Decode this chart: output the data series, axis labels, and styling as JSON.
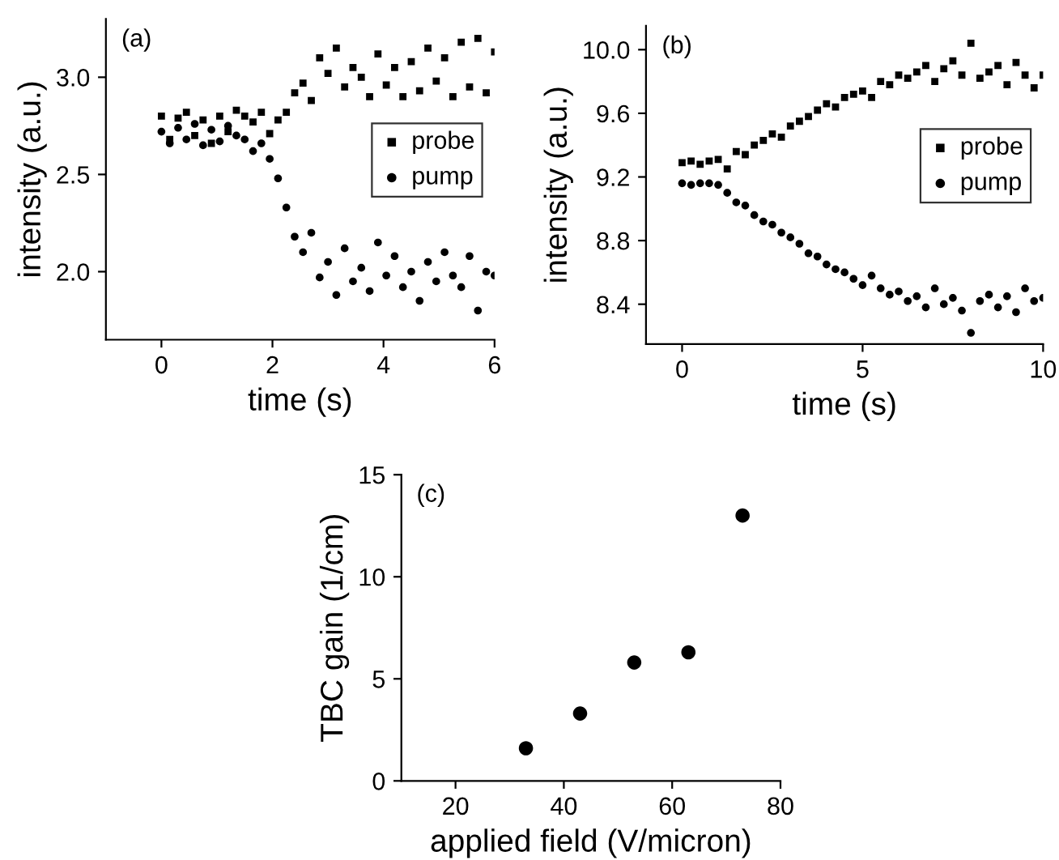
{
  "chart_data": [
    {
      "type": "scatter",
      "xlabel": "time (s)",
      "ylabel": "intensity (a.u.)",
      "annotations": [
        "(a)"
      ],
      "xlim": [
        -1,
        6
      ],
      "ylim": [
        1.65,
        3.3
      ],
      "xticks": [
        0,
        2,
        4,
        6
      ],
      "yticks": [
        {
          "value": 2.0,
          "label": "2.0"
        },
        {
          "value": 2.5,
          "label": "2.5"
        },
        {
          "value": 3.0,
          "label": "3.0"
        }
      ],
      "legend": "right",
      "grid": false,
      "x": [
        0,
        0.15,
        0.3,
        0.45,
        0.6,
        0.75,
        0.9,
        1.05,
        1.2,
        1.35,
        1.5,
        1.65,
        1.8,
        1.95,
        2.1,
        2.25,
        2.4,
        2.55,
        2.7,
        2.85,
        3.0,
        3.15,
        3.3,
        3.45,
        3.6,
        3.75,
        3.9,
        4.05,
        4.2,
        4.35,
        4.5,
        4.65,
        4.8,
        4.95,
        5.1,
        5.25,
        5.4,
        5.55,
        5.7,
        5.85,
        6.0
      ],
      "series": [
        {
          "name": "probe",
          "color": "#000000",
          "marker": "square",
          "values": [
            2.8,
            2.68,
            2.79,
            2.82,
            2.7,
            2.78,
            2.66,
            2.8,
            2.72,
            2.83,
            2.8,
            2.77,
            2.82,
            2.71,
            2.78,
            2.82,
            2.92,
            2.97,
            2.88,
            3.1,
            3.02,
            3.15,
            2.95,
            3.05,
            3.0,
            2.9,
            3.12,
            2.96,
            3.05,
            2.9,
            3.08,
            2.93,
            3.15,
            2.98,
            3.1,
            2.9,
            3.18,
            2.95,
            3.2,
            2.92,
            3.13
          ]
        },
        {
          "name": "pump",
          "color": "#000000",
          "marker": "circle",
          "values": [
            2.72,
            2.66,
            2.74,
            2.68,
            2.76,
            2.65,
            2.73,
            2.67,
            2.75,
            2.7,
            2.68,
            2.62,
            2.66,
            2.58,
            2.48,
            2.33,
            2.18,
            2.1,
            2.2,
            1.97,
            2.05,
            1.88,
            2.12,
            1.95,
            2.02,
            1.9,
            2.15,
            1.98,
            2.08,
            1.92,
            2.0,
            1.85,
            2.05,
            1.95,
            2.1,
            1.98,
            1.92,
            2.08,
            1.8,
            2.0,
            1.98
          ]
        }
      ]
    },
    {
      "type": "scatter",
      "xlabel": "time (s)",
      "ylabel": "intensity (a.u.)",
      "annotations": [
        "(b)"
      ],
      "xlim": [
        -1,
        10
      ],
      "ylim": [
        8.15,
        10.15
      ],
      "xticks": [
        0,
        5,
        10
      ],
      "yticks": [
        {
          "value": 8.4,
          "label": "8.4"
        },
        {
          "value": 8.8,
          "label": "8.8"
        },
        {
          "value": 9.2,
          "label": "9.2"
        },
        {
          "value": 9.6,
          "label": "9.6"
        },
        {
          "value": 10.0,
          "label": "10.0"
        }
      ],
      "legend": "right",
      "grid": false,
      "x": [
        0,
        0.25,
        0.5,
        0.75,
        1,
        1.25,
        1.5,
        1.75,
        2,
        2.25,
        2.5,
        2.75,
        3,
        3.25,
        3.5,
        3.75,
        4,
        4.25,
        4.5,
        4.75,
        5,
        5.25,
        5.5,
        5.75,
        6,
        6.25,
        6.5,
        6.75,
        7,
        7.25,
        7.5,
        7.75,
        8,
        8.25,
        8.5,
        8.75,
        9,
        9.25,
        9.5,
        9.75,
        10
      ],
      "series": [
        {
          "name": "probe",
          "color": "#000000",
          "marker": "square",
          "values": [
            9.29,
            9.3,
            9.28,
            9.3,
            9.31,
            9.25,
            9.36,
            9.34,
            9.4,
            9.43,
            9.47,
            9.45,
            9.52,
            9.55,
            9.58,
            9.62,
            9.66,
            9.64,
            9.7,
            9.72,
            9.74,
            9.7,
            9.8,
            9.78,
            9.84,
            9.82,
            9.86,
            9.9,
            9.8,
            9.88,
            9.93,
            9.84,
            10.04,
            9.82,
            9.86,
            9.9,
            9.78,
            9.92,
            9.84,
            9.76,
            9.84
          ]
        },
        {
          "name": "pump",
          "color": "#000000",
          "marker": "circle",
          "values": [
            9.16,
            9.15,
            9.16,
            9.16,
            9.15,
            9.1,
            9.04,
            9.02,
            8.96,
            8.92,
            8.9,
            8.85,
            8.82,
            8.78,
            8.72,
            8.7,
            8.65,
            8.62,
            8.6,
            8.56,
            8.52,
            8.58,
            8.5,
            8.46,
            8.48,
            8.42,
            8.45,
            8.38,
            8.5,
            8.4,
            8.44,
            8.36,
            8.22,
            8.42,
            8.46,
            8.38,
            8.45,
            8.35,
            8.5,
            8.42,
            8.44
          ]
        }
      ]
    },
    {
      "type": "scatter",
      "xlabel": "applied field (V/micron)",
      "ylabel": "TBC gain (1/cm)",
      "annotations": [
        "(c)"
      ],
      "xlim": [
        10,
        80
      ],
      "ylim": [
        0,
        15
      ],
      "xticks": [
        20,
        40,
        60,
        80
      ],
      "yticks": [
        0,
        5,
        10,
        15
      ],
      "grid": false,
      "marker": "circle",
      "x": [
        33,
        43,
        53,
        63,
        73
      ],
      "series": [
        {
          "color": "#000000",
          "values": [
            1.6,
            3.3,
            5.8,
            6.3,
            13.0
          ]
        }
      ]
    }
  ]
}
